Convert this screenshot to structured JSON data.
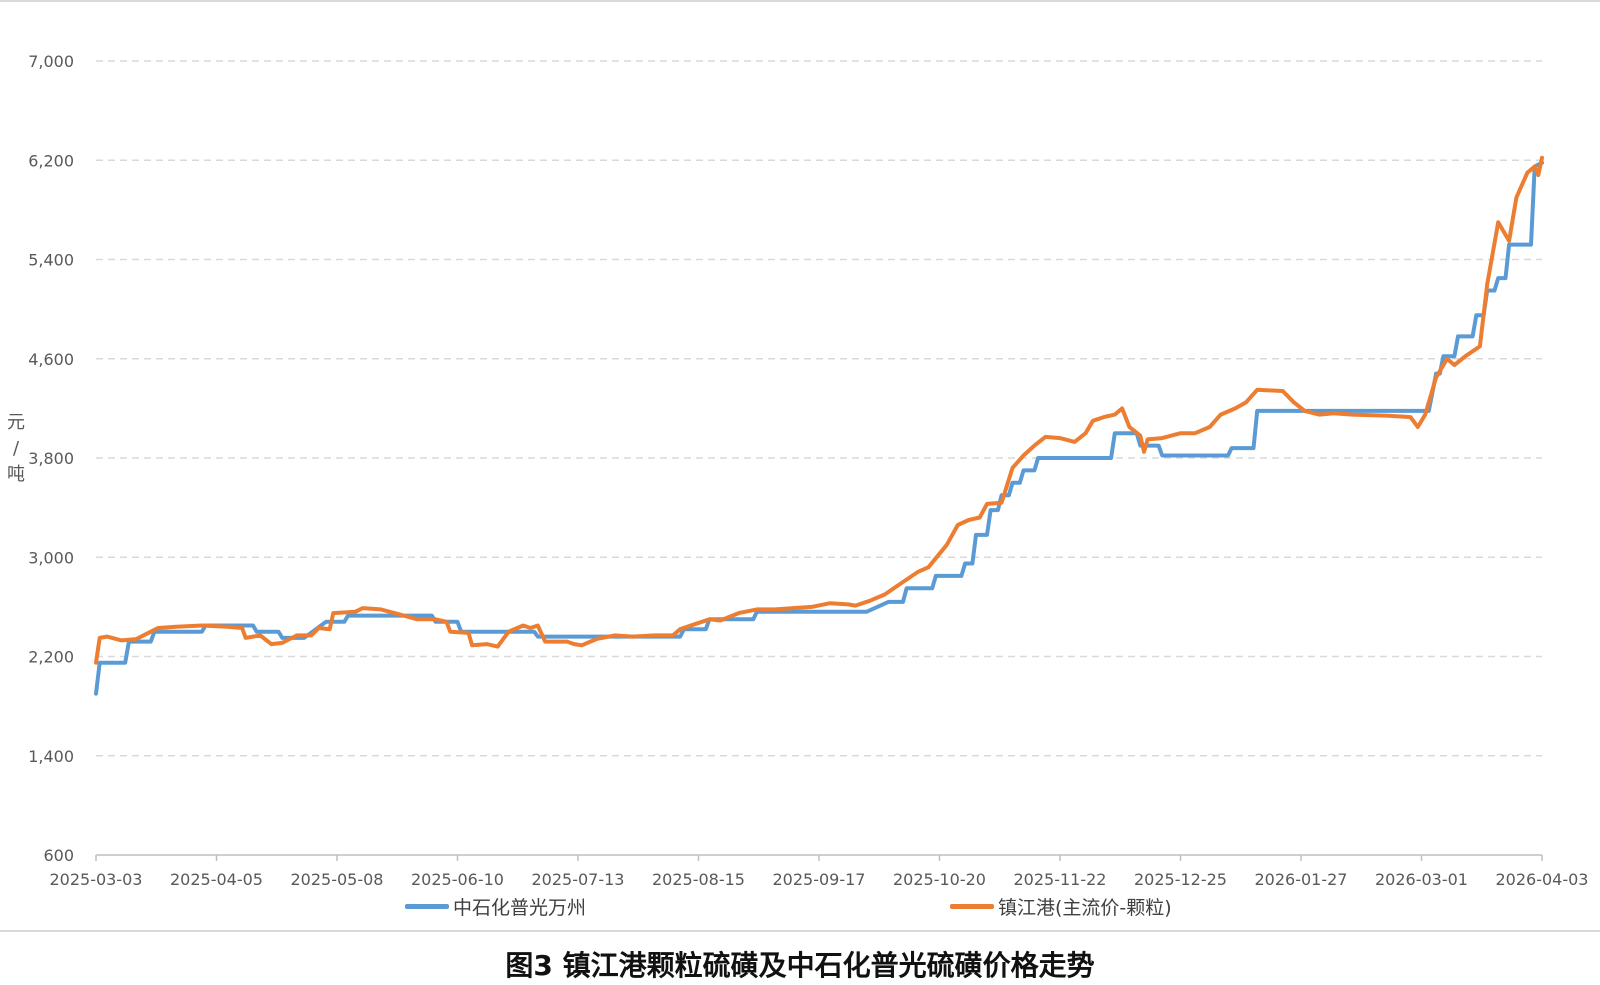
{
  "caption": "图3 镇江港颗粒硫磺及中石化普光硫磺价格走势",
  "chart_data": {
    "type": "line",
    "title": "",
    "xlabel": "",
    "ylabel_chars": [
      "元",
      "/",
      "吨"
    ],
    "ylim": [
      600,
      7000
    ],
    "y_ticks": [
      600,
      1400,
      2200,
      3000,
      3800,
      4600,
      5400,
      6200,
      7000
    ],
    "y_tick_labels": [
      "600",
      "1,400",
      "2,200",
      "3,000",
      "3,800",
      "4,600",
      "5,400",
      "6,200",
      "7,000"
    ],
    "x_ticks": [
      "2025-03-03",
      "2025-04-05",
      "2025-05-08",
      "2025-06-10",
      "2025-07-13",
      "2025-08-15",
      "2025-09-17",
      "2025-10-20",
      "2025-11-22",
      "2025-12-25",
      "2026-01-27",
      "2026-03-01",
      "2026-04-03"
    ],
    "x_range": [
      "2025-03-03",
      "2026-04-03"
    ],
    "grid": "horizontal dashed",
    "legend_position": "bottom",
    "series": [
      {
        "name": "中石化普光万州",
        "color": "#5b9bd5",
        "step": true,
        "points": [
          [
            "2025-03-03",
            1900
          ],
          [
            "2025-03-04",
            2150
          ],
          [
            "2025-03-11",
            2150
          ],
          [
            "2025-03-12",
            2320
          ],
          [
            "2025-03-18",
            2320
          ],
          [
            "2025-03-19",
            2400
          ],
          [
            "2025-04-01",
            2400
          ],
          [
            "2025-04-02",
            2450
          ],
          [
            "2025-04-15",
            2450
          ],
          [
            "2025-04-16",
            2400
          ],
          [
            "2025-04-22",
            2400
          ],
          [
            "2025-04-23",
            2350
          ],
          [
            "2025-04-29",
            2350
          ],
          [
            "2025-05-05",
            2480
          ],
          [
            "2025-05-10",
            2480
          ],
          [
            "2025-05-11",
            2530
          ],
          [
            "2025-06-03",
            2530
          ],
          [
            "2025-06-04",
            2480
          ],
          [
            "2025-06-10",
            2480
          ],
          [
            "2025-06-11",
            2400
          ],
          [
            "2025-07-01",
            2400
          ],
          [
            "2025-07-02",
            2360
          ],
          [
            "2025-08-10",
            2360
          ],
          [
            "2025-08-11",
            2420
          ],
          [
            "2025-08-17",
            2420
          ],
          [
            "2025-08-18",
            2500
          ],
          [
            "2025-08-30",
            2500
          ],
          [
            "2025-08-31",
            2560
          ],
          [
            "2025-09-30",
            2560
          ],
          [
            "2025-10-06",
            2640
          ],
          [
            "2025-10-10",
            2640
          ],
          [
            "2025-10-11",
            2750
          ],
          [
            "2025-10-18",
            2750
          ],
          [
            "2025-10-19",
            2850
          ],
          [
            "2025-10-26",
            2850
          ],
          [
            "2025-10-27",
            2950
          ],
          [
            "2025-10-29",
            2950
          ],
          [
            "2025-10-30",
            3180
          ],
          [
            "2025-11-02",
            3180
          ],
          [
            "2025-11-03",
            3380
          ],
          [
            "2025-11-05",
            3380
          ],
          [
            "2025-11-06",
            3500
          ],
          [
            "2025-11-08",
            3500
          ],
          [
            "2025-11-09",
            3600
          ],
          [
            "2025-11-11",
            3600
          ],
          [
            "2025-11-12",
            3700
          ],
          [
            "2025-11-15",
            3700
          ],
          [
            "2025-11-16",
            3800
          ],
          [
            "2025-12-06",
            3800
          ],
          [
            "2025-12-07",
            4000
          ],
          [
            "2025-12-13",
            4000
          ],
          [
            "2025-12-14",
            3900
          ],
          [
            "2025-12-19",
            3900
          ],
          [
            "2025-12-20",
            3820
          ],
          [
            "2026-01-07",
            3820
          ],
          [
            "2026-01-08",
            3880
          ],
          [
            "2026-01-14",
            3880
          ],
          [
            "2026-01-15",
            4180
          ],
          [
            "2026-03-03",
            4180
          ],
          [
            "2026-03-05",
            4480
          ],
          [
            "2026-03-06",
            4480
          ],
          [
            "2026-03-07",
            4620
          ],
          [
            "2026-03-10",
            4620
          ],
          [
            "2026-03-11",
            4780
          ],
          [
            "2026-03-15",
            4780
          ],
          [
            "2026-03-16",
            4950
          ],
          [
            "2026-03-18",
            4950
          ],
          [
            "2026-03-19",
            5150
          ],
          [
            "2026-03-21",
            5150
          ],
          [
            "2026-03-22",
            5250
          ],
          [
            "2026-03-24",
            5250
          ],
          [
            "2026-03-25",
            5520
          ],
          [
            "2026-03-31",
            5520
          ],
          [
            "2026-04-01",
            6150
          ],
          [
            "2026-04-03",
            6180
          ]
        ]
      },
      {
        "name": "镇江港(主流价-颗粒)",
        "color": "#ed7d31",
        "step": false,
        "points": [
          [
            "2025-03-03",
            2150
          ],
          [
            "2025-03-04",
            2350
          ],
          [
            "2025-03-06",
            2360
          ],
          [
            "2025-03-10",
            2330
          ],
          [
            "2025-03-14",
            2340
          ],
          [
            "2025-03-18",
            2400
          ],
          [
            "2025-03-20",
            2430
          ],
          [
            "2025-03-25",
            2440
          ],
          [
            "2025-04-01",
            2450
          ],
          [
            "2025-04-08",
            2440
          ],
          [
            "2025-04-12",
            2430
          ],
          [
            "2025-04-13",
            2350
          ],
          [
            "2025-04-17",
            2370
          ],
          [
            "2025-04-20",
            2300
          ],
          [
            "2025-04-23",
            2310
          ],
          [
            "2025-04-27",
            2370
          ],
          [
            "2025-05-01",
            2370
          ],
          [
            "2025-05-03",
            2430
          ],
          [
            "2025-05-06",
            2420
          ],
          [
            "2025-05-07",
            2550
          ],
          [
            "2025-05-13",
            2560
          ],
          [
            "2025-05-15",
            2590
          ],
          [
            "2025-05-20",
            2580
          ],
          [
            "2025-05-25",
            2540
          ],
          [
            "2025-05-30",
            2500
          ],
          [
            "2025-06-04",
            2500
          ],
          [
            "2025-06-07",
            2480
          ],
          [
            "2025-06-08",
            2400
          ],
          [
            "2025-06-13",
            2390
          ],
          [
            "2025-06-14",
            2290
          ],
          [
            "2025-06-18",
            2300
          ],
          [
            "2025-06-21",
            2280
          ],
          [
            "2025-06-24",
            2400
          ],
          [
            "2025-06-28",
            2450
          ],
          [
            "2025-06-30",
            2430
          ],
          [
            "2025-07-02",
            2450
          ],
          [
            "2025-07-04",
            2320
          ],
          [
            "2025-07-10",
            2320
          ],
          [
            "2025-07-12",
            2300
          ],
          [
            "2025-07-14",
            2290
          ],
          [
            "2025-07-18",
            2340
          ],
          [
            "2025-07-23",
            2370
          ],
          [
            "2025-07-28",
            2360
          ],
          [
            "2025-08-03",
            2370
          ],
          [
            "2025-08-08",
            2370
          ],
          [
            "2025-08-10",
            2420
          ],
          [
            "2025-08-14",
            2460
          ],
          [
            "2025-08-18",
            2500
          ],
          [
            "2025-08-21",
            2490
          ],
          [
            "2025-08-26",
            2550
          ],
          [
            "2025-08-31",
            2580
          ],
          [
            "2025-09-05",
            2580
          ],
          [
            "2025-09-10",
            2590
          ],
          [
            "2025-09-15",
            2600
          ],
          [
            "2025-09-20",
            2630
          ],
          [
            "2025-09-25",
            2620
          ],
          [
            "2025-09-27",
            2610
          ],
          [
            "2025-10-01",
            2650
          ],
          [
            "2025-10-05",
            2700
          ],
          [
            "2025-10-09",
            2780
          ],
          [
            "2025-10-14",
            2880
          ],
          [
            "2025-10-17",
            2920
          ],
          [
            "2025-10-22",
            3100
          ],
          [
            "2025-10-25",
            3260
          ],
          [
            "2025-10-28",
            3300
          ],
          [
            "2025-10-31",
            3320
          ],
          [
            "2025-11-02",
            3430
          ],
          [
            "2025-11-06",
            3440
          ],
          [
            "2025-11-09",
            3720
          ],
          [
            "2025-11-12",
            3820
          ],
          [
            "2025-11-15",
            3900
          ],
          [
            "2025-11-18",
            3970
          ],
          [
            "2025-11-22",
            3960
          ],
          [
            "2025-11-26",
            3930
          ],
          [
            "2025-11-29",
            4000
          ],
          [
            "2025-12-01",
            4100
          ],
          [
            "2025-12-04",
            4130
          ],
          [
            "2025-12-07",
            4150
          ],
          [
            "2025-12-09",
            4200
          ],
          [
            "2025-12-11",
            4050
          ],
          [
            "2025-12-14",
            3980
          ],
          [
            "2025-12-15",
            3850
          ],
          [
            "2025-12-16",
            3950
          ],
          [
            "2025-12-20",
            3960
          ],
          [
            "2025-12-25",
            4000
          ],
          [
            "2025-12-29",
            4000
          ],
          [
            "2026-01-02",
            4050
          ],
          [
            "2026-01-05",
            4150
          ],
          [
            "2026-01-09",
            4200
          ],
          [
            "2026-01-12",
            4250
          ],
          [
            "2026-01-15",
            4350
          ],
          [
            "2026-01-22",
            4340
          ],
          [
            "2026-01-25",
            4250
          ],
          [
            "2026-01-28",
            4180
          ],
          [
            "2026-02-01",
            4150
          ],
          [
            "2026-02-05",
            4160
          ],
          [
            "2026-02-10",
            4150
          ],
          [
            "2026-02-20",
            4140
          ],
          [
            "2026-02-26",
            4130
          ],
          [
            "2026-02-28",
            4050
          ],
          [
            "2026-03-02",
            4150
          ],
          [
            "2026-03-05",
            4450
          ],
          [
            "2026-03-08",
            4600
          ],
          [
            "2026-03-10",
            4550
          ],
          [
            "2026-03-13",
            4620
          ],
          [
            "2026-03-17",
            4700
          ],
          [
            "2026-03-19",
            5200
          ],
          [
            "2026-03-22",
            5700
          ],
          [
            "2026-03-25",
            5550
          ],
          [
            "2026-03-27",
            5900
          ],
          [
            "2026-03-30",
            6100
          ],
          [
            "2026-04-01",
            6150
          ],
          [
            "2026-04-02",
            6080
          ],
          [
            "2026-04-03",
            6220
          ]
        ]
      }
    ]
  }
}
